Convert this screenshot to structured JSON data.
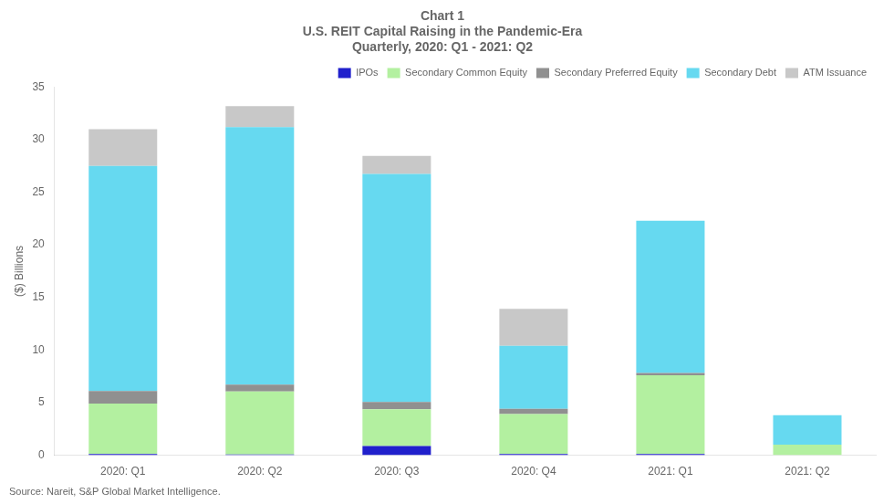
{
  "chart_data": {
    "type": "bar",
    "stacked": true,
    "title": "Chart 1\nU.S. REIT Capital Raising in the Pandemic-Era\nQuarterly, 2020: Q1 - 2021: Q2",
    "ylabel": "($) Billions",
    "annotation": "Source: Nareit, S&P Global Market Intelligence.",
    "categories": [
      "2020: Q1",
      "2020: Q2",
      "2020: Q3",
      "2020: Q4",
      "2021: Q1",
      "2021: Q2"
    ],
    "series": [
      {
        "name": "IPOs",
        "color": "#2020cc",
        "values": [
          0.1,
          0.05,
          0.85,
          0.1,
          0.1,
          0.0
        ]
      },
      {
        "name": "Secondary Common Equity",
        "color": "#b3f0a0",
        "values": [
          4.8,
          6.0,
          3.5,
          3.8,
          7.5,
          1.0
        ]
      },
      {
        "name": "Secondary Preferred Equity",
        "color": "#909090",
        "values": [
          1.2,
          0.65,
          0.7,
          0.5,
          0.2,
          0.0
        ]
      },
      {
        "name": "Secondary Debt",
        "color": "#66d9f0",
        "values": [
          21.4,
          24.5,
          21.7,
          6.0,
          14.5,
          2.8
        ]
      },
      {
        "name": "ATM Issuance",
        "color": "#c8c8c8",
        "values": [
          3.5,
          2.0,
          1.7,
          3.5,
          0.0,
          0.0
        ]
      }
    ],
    "ylim": [
      0,
      35
    ],
    "yticks": [
      0,
      5,
      10,
      15,
      20,
      25,
      30,
      35
    ],
    "grid": false,
    "legend": "upper right"
  }
}
